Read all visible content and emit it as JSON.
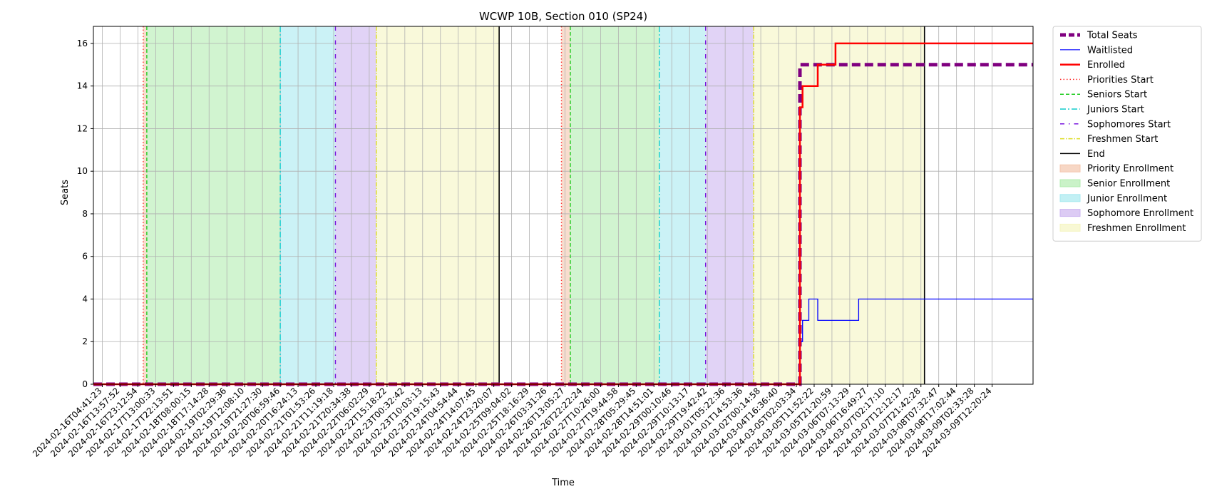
{
  "chart_data": {
    "type": "line",
    "title": "WCWP 10B, Section 010 (SP24)",
    "xlabel": "Time",
    "ylabel": "Seats",
    "ylim": [
      0,
      16.8
    ],
    "yticks": [
      0,
      2,
      4,
      6,
      8,
      10,
      12,
      14,
      16
    ],
    "grid": true,
    "legend_position": "outside-right",
    "x_tick_labels": [
      "2024-02-16T04:41:23",
      "2024-02-16T13:57:52",
      "2024-02-16T23:12:54",
      "2024-02-17T13:00:33",
      "2024-02-17T22:13:51",
      "2024-02-18T08:00:15",
      "2024-02-18T17:14:28",
      "2024-02-19T02:29:36",
      "2024-02-19T12:08:10",
      "2024-02-19T21:27:30",
      "2024-02-20T06:59:46",
      "2024-02-20T16:24:13",
      "2024-02-21T01:53:26",
      "2024-02-21T11:19:18",
      "2024-02-21T20:34:38",
      "2024-02-22T06:02:29",
      "2024-02-22T15:18:22",
      "2024-02-23T00:32:42",
      "2024-02-23T10:03:13",
      "2024-02-23T19:15:43",
      "2024-02-24T04:54:44",
      "2024-02-24T14:07:45",
      "2024-02-24T23:20:07",
      "2024-02-25T09:04:02",
      "2024-02-25T18:16:29",
      "2024-02-26T03:31:26",
      "2024-02-26T13:05:27",
      "2024-02-26T22:22:24",
      "2024-02-27T10:26:00",
      "2024-02-27T19:44:58",
      "2024-02-28T05:29:45",
      "2024-02-28T14:51:01",
      "2024-02-29T00:10:46",
      "2024-02-29T10:13:17",
      "2024-02-29T19:42:42",
      "2024-03-01T05:22:36",
      "2024-03-01T14:53:36",
      "2024-03-02T00:14:58",
      "2024-03-04T16:36:40",
      "2024-03-05T02:03:34",
      "2024-03-05T11:52:22",
      "2024-03-05T21:20:59",
      "2024-03-06T07:13:29",
      "2024-03-06T16:49:27",
      "2024-03-07T02:17:10",
      "2024-03-07T12:12:17",
      "2024-03-07T21:42:28",
      "2024-03-08T07:32:47",
      "2024-03-08T17:02:44",
      "2024-03-09T02:33:28",
      "2024-03-09T12:20:24"
    ],
    "x_range_ticks": [
      -0.5,
      52.3
    ],
    "series": [
      {
        "name": "Total Seats",
        "color": "#800080",
        "style": "dashed-thick",
        "x": [
          -0.5,
          39.2,
          39.2,
          52.3
        ],
        "y": [
          0,
          0,
          15,
          15
        ]
      },
      {
        "name": "Waitlisted",
        "color": "#0000ff",
        "style": "solid-thin",
        "x": [
          -0.5,
          39.2,
          39.2,
          39.35,
          39.35,
          39.7,
          39.7,
          40.2,
          40.2,
          40.6,
          40.6,
          42.5,
          42.5,
          52.3
        ],
        "y": [
          0,
          0,
          2,
          2,
          3,
          3,
          4,
          4,
          3,
          3,
          3,
          3,
          4,
          4
        ]
      },
      {
        "name": "Enrolled",
        "color": "#ff0000",
        "style": "solid-thick",
        "x": [
          -0.5,
          39.2,
          39.2,
          39.35,
          39.35,
          40.2,
          40.2,
          41.2,
          41.2,
          52.3
        ],
        "y": [
          0,
          0,
          13,
          13,
          14,
          14,
          15,
          15,
          16,
          16
        ]
      }
    ],
    "markers": [
      {
        "name": "Priorities Start",
        "color": "#ff3333",
        "dash": "1.5,3",
        "x": [
          2.3,
          25.8
        ]
      },
      {
        "name": "Seniors Start",
        "color": "#22cc22",
        "dash": "5,3",
        "x": [
          2.5,
          26.3
        ]
      },
      {
        "name": "Juniors Start",
        "color": "#11cccc",
        "dash": "8,3,2,3",
        "x": [
          10.0,
          31.3
        ]
      },
      {
        "name": "Sophomores Start",
        "color": "#7711dd",
        "dash": "6,6,1.5,6",
        "x": [
          13.1,
          33.9
        ]
      },
      {
        "name": "Freshmen Start",
        "color": "#dddd22",
        "dash": "6,2,1.5,2",
        "x": [
          15.4,
          36.6
        ]
      },
      {
        "name": "End",
        "color": "#000000",
        "dash": "",
        "x": [
          22.3,
          46.2
        ]
      }
    ],
    "spans": [
      {
        "name": "Priority Enrollment",
        "color": "#f4c6ad",
        "ranges": [
          [
            2.3,
            2.5
          ],
          [
            25.8,
            26.3
          ]
        ]
      },
      {
        "name": "Senior Enrollment",
        "color": "#b3ecb0",
        "ranges": [
          [
            2.5,
            10.0
          ],
          [
            26.3,
            31.3
          ]
        ]
      },
      {
        "name": "Junior Enrollment",
        "color": "#a8eaf0",
        "ranges": [
          [
            10.0,
            13.1
          ],
          [
            31.3,
            33.9
          ]
        ]
      },
      {
        "name": "Sophomore Enrollment",
        "color": "#cdb5f0",
        "ranges": [
          [
            13.1,
            15.4
          ],
          [
            33.9,
            36.6
          ]
        ]
      },
      {
        "name": "Freshmen Enrollment",
        "color": "#f5f5c2",
        "ranges": [
          [
            15.4,
            22.3
          ],
          [
            36.6,
            46.2
          ]
        ]
      }
    ],
    "legend": [
      {
        "label": "Total Seats",
        "kind": "line",
        "color": "#800080",
        "width": 5,
        "dash": "8,4"
      },
      {
        "label": "Waitlisted",
        "kind": "line",
        "color": "#0000ff",
        "width": 1.2,
        "dash": ""
      },
      {
        "label": "Enrolled",
        "kind": "line",
        "color": "#ff0000",
        "width": 2.5,
        "dash": ""
      },
      {
        "label": "Priorities Start",
        "kind": "line",
        "color": "#ff3333",
        "width": 1.5,
        "dash": "1.5,3"
      },
      {
        "label": "Seniors Start",
        "kind": "line",
        "color": "#22cc22",
        "width": 1.5,
        "dash": "5,3"
      },
      {
        "label": "Juniors Start",
        "kind": "line",
        "color": "#11cccc",
        "width": 1.5,
        "dash": "8,3,2,3"
      },
      {
        "label": "Sophomores Start",
        "kind": "line",
        "color": "#7711dd",
        "width": 1.5,
        "dash": "6,6,1.5,6"
      },
      {
        "label": "Freshmen Start",
        "kind": "line",
        "color": "#dddd22",
        "width": 1.5,
        "dash": "6,2,1.5,2"
      },
      {
        "label": "End",
        "kind": "line",
        "color": "#000000",
        "width": 1.5,
        "dash": ""
      },
      {
        "label": "Priority Enrollment",
        "kind": "patch",
        "color": "#f4c6ad"
      },
      {
        "label": "Senior Enrollment",
        "kind": "patch",
        "color": "#b3ecb0"
      },
      {
        "label": "Junior Enrollment",
        "kind": "patch",
        "color": "#a8eaf0"
      },
      {
        "label": "Sophomore Enrollment",
        "kind": "patch",
        "color": "#cdb5f0"
      },
      {
        "label": "Freshmen Enrollment",
        "kind": "patch",
        "color": "#f5f5c2"
      }
    ]
  }
}
